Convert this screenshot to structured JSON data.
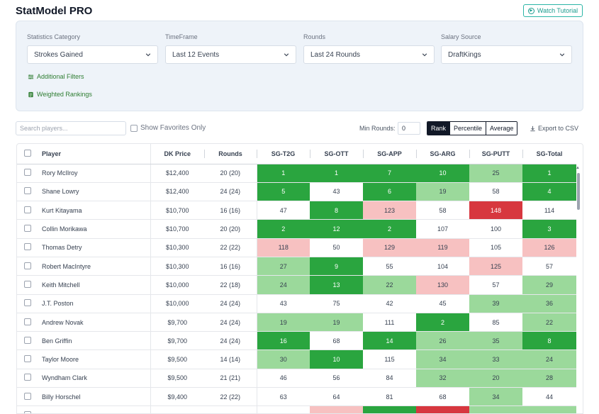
{
  "app": {
    "title": "StatModel PRO",
    "tutorial_label": "Watch Tutorial"
  },
  "filters": {
    "category": {
      "label": "Statistics Category",
      "value": "Strokes Gained"
    },
    "timeframe": {
      "label": "TimeFrame",
      "value": "Last 12 Events"
    },
    "rounds": {
      "label": "Rounds",
      "value": "Last 24 Rounds"
    },
    "salary": {
      "label": "Salary Source",
      "value": "DraftKings"
    },
    "additional_label": "Additional Filters",
    "weighted_label": "Weighted Rankings"
  },
  "toolbar": {
    "search_placeholder": "Search players...",
    "favorites_label": "Show Favorites Only",
    "min_rounds_label": "Min Rounds:",
    "min_rounds_value": "0",
    "views": [
      "Rank",
      "Percentile",
      "Average"
    ],
    "active_view": "Rank",
    "export_label": "Export to CSV"
  },
  "table": {
    "columns": [
      "Player",
      "DK Price",
      "Rounds",
      "SG-T2G",
      "SG-OTT",
      "SG-APP",
      "SG-ARG",
      "SG-PUTT",
      "SG-Total"
    ],
    "rows": [
      {
        "player": "Rory McIlroy",
        "price": "$12,400",
        "rounds": "20 (20)",
        "stats": [
          "1",
          "1",
          "7",
          "10",
          "25",
          "1"
        ],
        "colors": [
          "dg",
          "dg",
          "dg",
          "dg",
          "lg",
          "dg"
        ]
      },
      {
        "player": "Shane Lowry",
        "price": "$12,400",
        "rounds": "24 (24)",
        "stats": [
          "5",
          "43",
          "6",
          "19",
          "58",
          "4"
        ],
        "colors": [
          "dg",
          "",
          "dg",
          "lg",
          "",
          "dg"
        ]
      },
      {
        "player": "Kurt Kitayama",
        "price": "$10,700",
        "rounds": "16 (16)",
        "stats": [
          "47",
          "8",
          "123",
          "58",
          "148",
          "114"
        ],
        "colors": [
          "",
          "dg",
          "lr",
          "",
          "dr",
          ""
        ]
      },
      {
        "player": "Collin Morikawa",
        "price": "$10,700",
        "rounds": "20 (20)",
        "stats": [
          "2",
          "12",
          "2",
          "107",
          "100",
          "3"
        ],
        "colors": [
          "dg",
          "dg",
          "dg",
          "",
          "",
          "dg"
        ]
      },
      {
        "player": "Thomas Detry",
        "price": "$10,300",
        "rounds": "22 (22)",
        "stats": [
          "118",
          "50",
          "129",
          "119",
          "105",
          "126"
        ],
        "colors": [
          "lr",
          "",
          "lr",
          "lr",
          "",
          "lr"
        ]
      },
      {
        "player": "Robert MacIntyre",
        "price": "$10,300",
        "rounds": "16 (16)",
        "stats": [
          "27",
          "9",
          "55",
          "104",
          "125",
          "57"
        ],
        "colors": [
          "lg",
          "dg",
          "",
          "",
          "lr",
          ""
        ]
      },
      {
        "player": "Keith Mitchell",
        "price": "$10,000",
        "rounds": "22 (18)",
        "stats": [
          "24",
          "13",
          "22",
          "130",
          "57",
          "29"
        ],
        "colors": [
          "lg",
          "dg",
          "lg",
          "lr",
          "",
          "lg"
        ]
      },
      {
        "player": "J.T. Poston",
        "price": "$10,000",
        "rounds": "24 (24)",
        "stats": [
          "43",
          "75",
          "42",
          "45",
          "39",
          "36"
        ],
        "colors": [
          "",
          "",
          "",
          "",
          "lg",
          "lg"
        ]
      },
      {
        "player": "Andrew Novak",
        "price": "$9,700",
        "rounds": "24 (24)",
        "stats": [
          "19",
          "19",
          "111",
          "2",
          "85",
          "22"
        ],
        "colors": [
          "lg",
          "lg",
          "",
          "dg",
          "",
          "lg"
        ]
      },
      {
        "player": "Ben Griffin",
        "price": "$9,700",
        "rounds": "24 (24)",
        "stats": [
          "16",
          "68",
          "14",
          "26",
          "35",
          "8"
        ],
        "colors": [
          "dg",
          "",
          "dg",
          "lg",
          "lg",
          "dg"
        ]
      },
      {
        "player": "Taylor Moore",
        "price": "$9,500",
        "rounds": "14 (14)",
        "stats": [
          "30",
          "10",
          "115",
          "34",
          "33",
          "24"
        ],
        "colors": [
          "lg",
          "dg",
          "",
          "lg",
          "lg",
          "lg"
        ]
      },
      {
        "player": "Wyndham Clark",
        "price": "$9,500",
        "rounds": "21 (21)",
        "stats": [
          "46",
          "56",
          "84",
          "32",
          "20",
          "28"
        ],
        "colors": [
          "",
          "",
          "",
          "lg",
          "lg",
          "lg"
        ]
      },
      {
        "player": "Billy Horschel",
        "price": "$9,400",
        "rounds": "22 (22)",
        "stats": [
          "63",
          "64",
          "81",
          "68",
          "34",
          "44"
        ],
        "colors": [
          "",
          "",
          "",
          "",
          "lg",
          ""
        ]
      },
      {
        "player": "",
        "price": "",
        "rounds": "",
        "stats": [
          "",
          "",
          "",
          "",
          "",
          ""
        ],
        "colors": [
          "",
          "lr",
          "dg",
          "dr",
          "lg",
          "lg"
        ]
      }
    ]
  }
}
